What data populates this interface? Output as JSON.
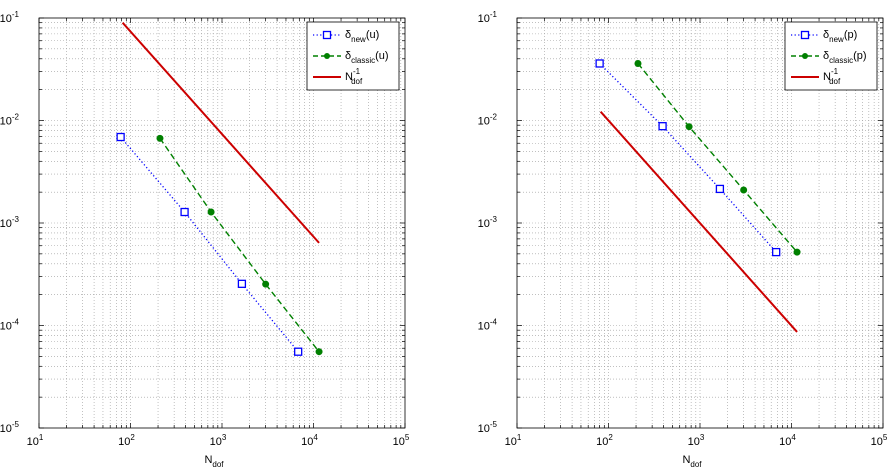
{
  "chart_data": [
    {
      "type": "line",
      "xscale": "log",
      "yscale": "log",
      "xlim": [
        10,
        100000
      ],
      "ylim": [
        1e-05,
        0.1
      ],
      "grid": "on",
      "legend_position": "top-right",
      "xlabel": {
        "main": "N",
        "sub": "dof"
      },
      "x_tick_labels": [
        {
          "base": "10",
          "exp": "1"
        },
        {
          "base": "10",
          "exp": "2"
        },
        {
          "base": "10",
          "exp": "3"
        },
        {
          "base": "10",
          "exp": "4"
        },
        {
          "base": "10",
          "exp": "5"
        }
      ],
      "y_tick_labels": [
        {
          "base": "10",
          "exp": "-5"
        },
        {
          "base": "10",
          "exp": "-4"
        },
        {
          "base": "10",
          "exp": "-3"
        },
        {
          "base": "10",
          "exp": "-2"
        },
        {
          "base": "10",
          "exp": "-1"
        }
      ],
      "series": [
        {
          "label": {
            "main": "δ",
            "sub": "new",
            "tail": "(u)"
          },
          "color": "#0000ff",
          "style": "dotted",
          "marker": "square",
          "x": [
            78,
            390,
            1650,
            6800
          ],
          "y": [
            0.0069,
            0.00128,
            0.000255,
            5.55e-05
          ]
        },
        {
          "label": {
            "main": "δ",
            "sub": "classic",
            "tail": "(u)"
          },
          "color": "#008000",
          "style": "dashed",
          "marker": "dot",
          "x": [
            210,
            760,
            3000,
            11500
          ],
          "y": [
            0.0067,
            0.00128,
            0.000253,
            5.55e-05
          ]
        },
        {
          "label": {
            "main": "N",
            "sup": "-1",
            "sub": "dof"
          },
          "color": "#cc0000",
          "style": "solid",
          "marker": "none",
          "x": [
            82,
            11500
          ],
          "y": [
            0.09,
            0.00064
          ]
        }
      ]
    },
    {
      "type": "line",
      "xscale": "log",
      "yscale": "log",
      "xlim": [
        10,
        100000
      ],
      "ylim": [
        1e-05,
        0.1
      ],
      "grid": "on",
      "legend_position": "top-right",
      "xlabel": {
        "main": "N",
        "sub": "dof"
      },
      "x_tick_labels": [
        {
          "base": "10",
          "exp": "1"
        },
        {
          "base": "10",
          "exp": "2"
        },
        {
          "base": "10",
          "exp": "3"
        },
        {
          "base": "10",
          "exp": "4"
        },
        {
          "base": "10",
          "exp": "5"
        }
      ],
      "y_tick_labels": [
        {
          "base": "10",
          "exp": "-5"
        },
        {
          "base": "10",
          "exp": "-4"
        },
        {
          "base": "10",
          "exp": "-3"
        },
        {
          "base": "10",
          "exp": "-2"
        },
        {
          "base": "10",
          "exp": "-1"
        }
      ],
      "series": [
        {
          "label": {
            "main": "δ",
            "sub": "new",
            "tail": "(p)"
          },
          "color": "#0000ff",
          "style": "dotted",
          "marker": "square",
          "x": [
            80,
            390,
            1650,
            6800
          ],
          "y": [
            0.036,
            0.0088,
            0.00215,
            0.00052
          ]
        },
        {
          "label": {
            "main": "δ",
            "sub": "classic",
            "tail": "(p)"
          },
          "color": "#008000",
          "style": "dashed",
          "marker": "dot",
          "x": [
            210,
            760,
            3000,
            11500
          ],
          "y": [
            0.036,
            0.0087,
            0.0021,
            0.00052
          ]
        },
        {
          "label": {
            "main": "N",
            "sup": "-1",
            "sub": "dof"
          },
          "color": "#cc0000",
          "style": "solid",
          "marker": "none",
          "x": [
            82,
            11500
          ],
          "y": [
            0.0122,
            8.65e-05
          ]
        }
      ]
    }
  ]
}
